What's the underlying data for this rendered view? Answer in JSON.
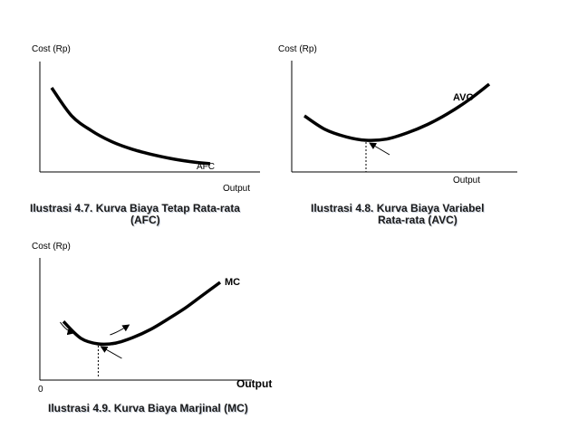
{
  "chart_data": [
    {
      "type": "line",
      "ylabel": "Cost (Rp)",
      "xlabel": "Output",
      "curve_label": "AFC",
      "caption_lines": [
        "Ilustrasi 4.7. Kurva Biaya Tetap Rata-rata",
        "(AFC)"
      ],
      "series": [
        {
          "name": "AFC",
          "x": [
            1,
            2,
            3,
            4,
            5,
            6,
            7,
            8,
            9
          ],
          "y": [
            9.0,
            6.4,
            5.0,
            4.0,
            3.3,
            2.8,
            2.4,
            2.1,
            1.9
          ]
        }
      ]
    },
    {
      "type": "line",
      "ylabel": "Cost (Rp)",
      "xlabel": "Output",
      "curve_label": "AVC",
      "caption_lines": [
        "Ilustrasi 4.8. Kurva Biaya Variabel",
        "Rata-rata  (AVC)"
      ],
      "series": [
        {
          "name": "AVC",
          "x": [
            0,
            1,
            2,
            3,
            4,
            5,
            6,
            7,
            8,
            9
          ],
          "y": [
            5.0,
            3.9,
            3.3,
            3.0,
            3.1,
            3.6,
            4.3,
            5.2,
            6.3,
            7.6
          ]
        }
      ]
    },
    {
      "type": "line",
      "ylabel": "Cost (Rp)",
      "xlabel": "Output",
      "origin_label": "0",
      "curve_label": "MC",
      "caption_lines": [
        "Ilustrasi 4.9. Kurva Biaya Marjinal (MC)"
      ],
      "series": [
        {
          "name": "MC",
          "x": [
            0,
            1,
            2,
            3,
            4,
            5,
            6,
            7,
            8,
            9
          ],
          "y": [
            4.6,
            2.5,
            1.8,
            1.9,
            2.6,
            3.6,
            4.9,
            6.3,
            7.9,
            9.5
          ]
        }
      ]
    }
  ]
}
